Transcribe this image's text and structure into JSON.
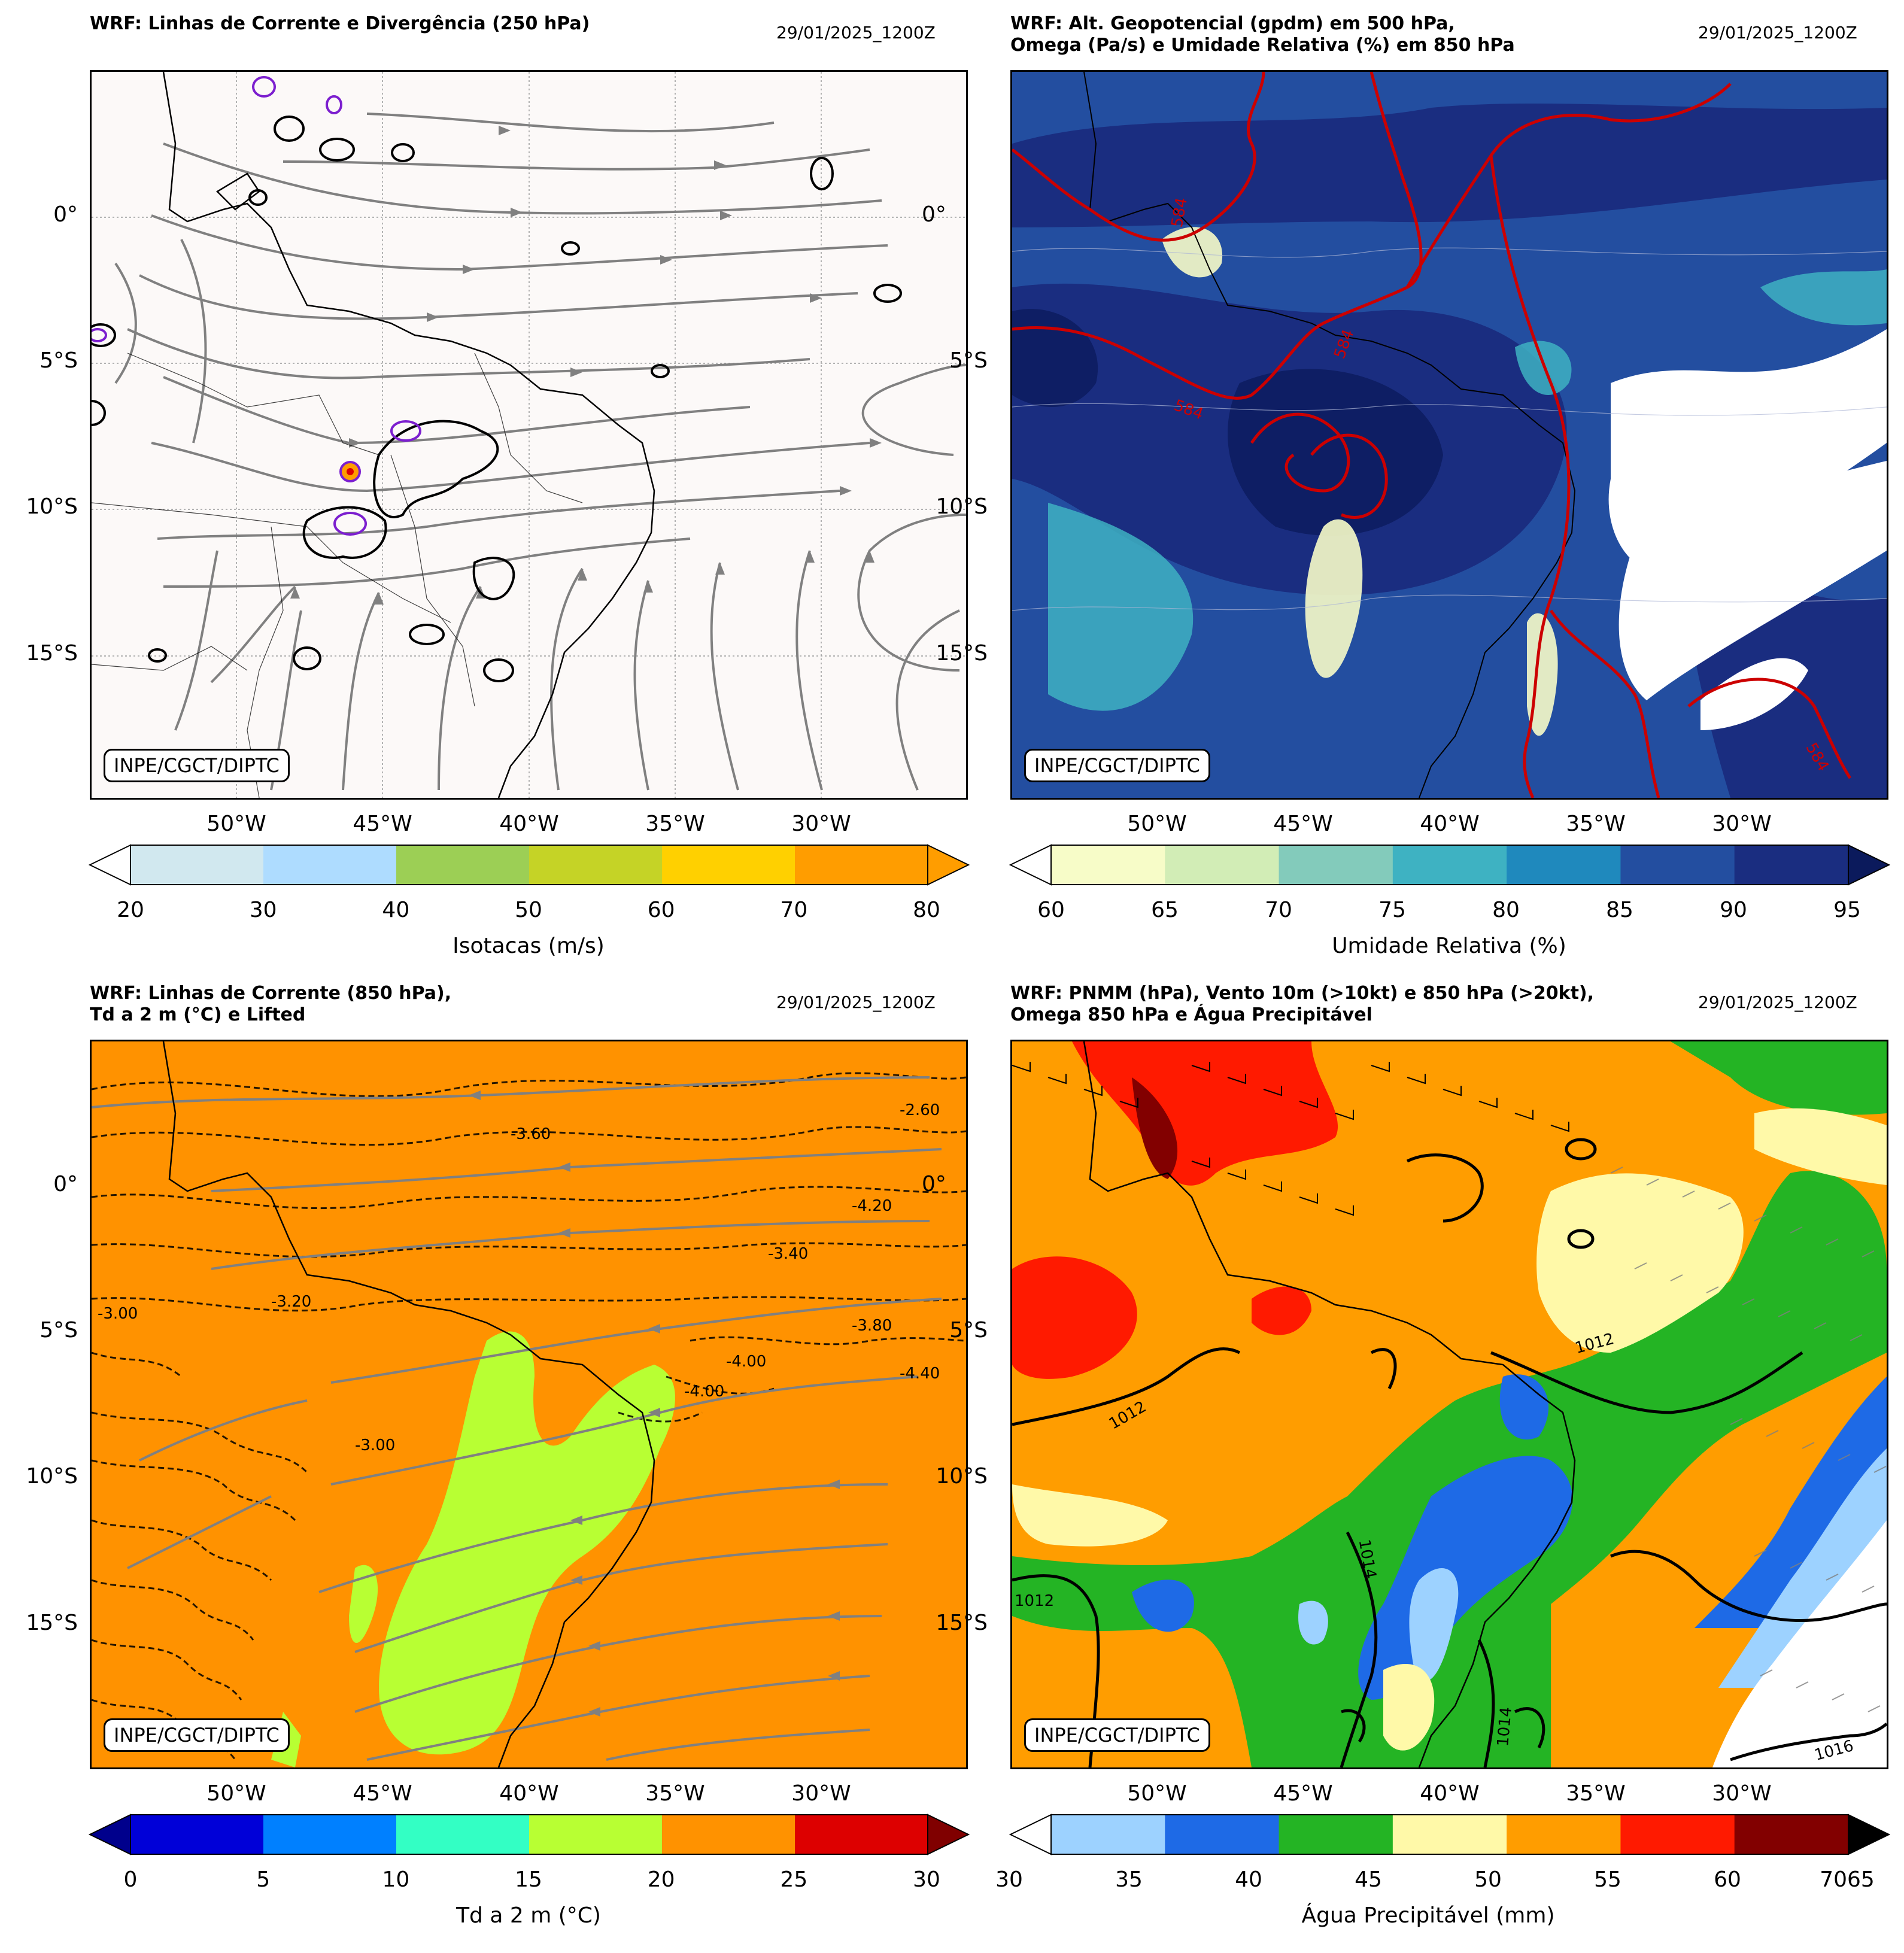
{
  "panels": [
    {
      "id": "p1",
      "title": "WRF: Linhas de Corrente e Divergência (250 hPa)",
      "date": "29/01/2025_1200Z",
      "credit": "INPE/CGCT/DIPTC",
      "colorbar": {
        "label": "Isotacas (m/s)",
        "ticks": [
          "20",
          "30",
          "40",
          "50",
          "60",
          "70",
          "80"
        ],
        "colors": [
          "#d1e8ef",
          "#aedcff",
          "#9ccf55",
          "#c5d326",
          "#ffd000",
          "#ff9d00"
        ],
        "under_color": "#ffffff",
        "over_color": "#ff9d00"
      }
    },
    {
      "id": "p2",
      "title": "WRF: Alt. Geopotencial (gpdm) em 500 hPa,\nOmega (Pa/s) e Umidade Relativa (%) em 850 hPa",
      "date": "29/01/2025_1200Z",
      "credit": "INPE/CGCT/DIPTC",
      "contour_labels": [
        "584",
        "584",
        "584",
        "584"
      ],
      "colorbar": {
        "label": "Umidade Relativa (%)",
        "ticks": [
          "60",
          "65",
          "70",
          "75",
          "80",
          "85",
          "90",
          "95"
        ],
        "colors": [
          "#f7fcc8",
          "#d2edb6",
          "#83cbbb",
          "#3eb2c2",
          "#1f89bd",
          "#234ea0",
          "#1a2d80"
        ],
        "under_color": "#ffffff",
        "over_color": "#0b1a5c"
      }
    },
    {
      "id": "p3",
      "title": "WRF: Linhas de Corrente (850 hPa),\nTd a 2 m (°C) e Lifted",
      "date": "29/01/2025_1200Z",
      "credit": "INPE/CGCT/DIPTC",
      "contour_labels": [
        "-4.00",
        "-3.00",
        "-4.20",
        "-3.80",
        "-3.20",
        "-2.60",
        "-3.00",
        "-4.40",
        "-4.00",
        "-3.40",
        "-3.60"
      ],
      "colorbar": {
        "label": "Td a 2 m (°C)",
        "ticks": [
          "0",
          "5",
          "10",
          "15",
          "20",
          "25",
          "30"
        ],
        "colors": [
          "#0000d8",
          "#0080ff",
          "#33ffc4",
          "#b8ff33",
          "#ff9200",
          "#dd0000"
        ],
        "under_color": "#00008c",
        "over_color": "#800000"
      }
    },
    {
      "id": "p4",
      "title": "WRF: PNMM (hPa), Vento 10m (>10kt) e 850 hPa (>20kt),\nOmega 850 hPa e Água Precipitável",
      "date": "29/01/2025_1200Z",
      "credit": "INPE/CGCT/DIPTC",
      "contour_labels": [
        "1012",
        "1012",
        "1012",
        "1014",
        "1014",
        "1016"
      ],
      "colorbar": {
        "label": "Água Precipitável (mm)",
        "ticks": [
          "30",
          "35",
          "40",
          "45",
          "50",
          "55",
          "60",
          "65",
          "70"
        ],
        "tick_overlap": "7065",
        "colors": [
          "#9dd2ff",
          "#1e6ae6",
          "#24b424",
          "#fff9a8",
          "#ff9d00",
          "#ff1a00",
          "#820000"
        ],
        "under_color": "#ffffff",
        "over_color": "#000000"
      }
    }
  ],
  "axes": {
    "lat_labels": [
      "0°",
      "5°S",
      "10°S",
      "15°S"
    ],
    "lon_labels": [
      "50°W",
      "45°W",
      "40°W",
      "35°W",
      "30°W"
    ]
  },
  "colors": {
    "coast": "#000000",
    "streamline": "#808080",
    "geopotential": "#cc0000",
    "divergence_pos": "#7c1fcf",
    "map_bg": "#fcf9f8"
  }
}
